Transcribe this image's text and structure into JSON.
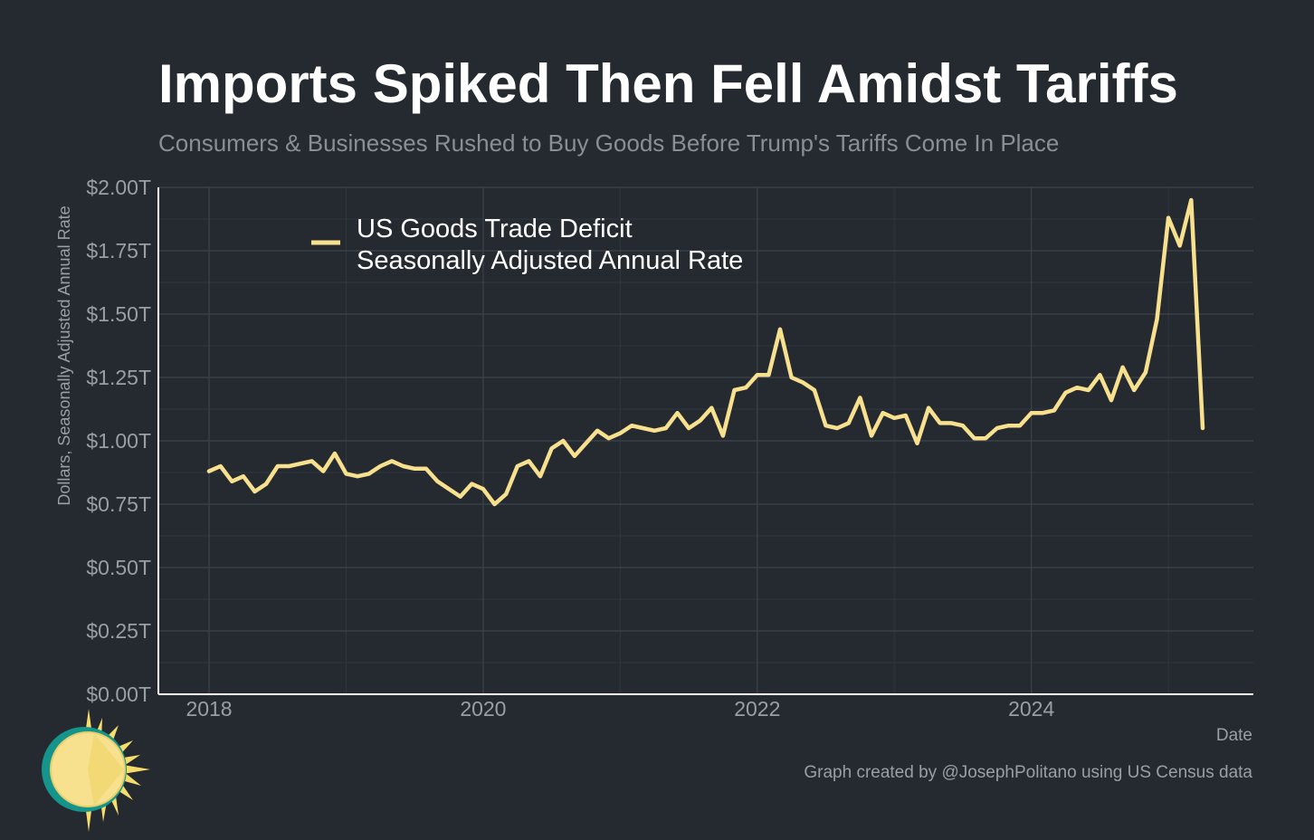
{
  "colors": {
    "background": "#252a31",
    "line": "#f7e08e",
    "axis": "#ffffff",
    "logo_ring": "#14948a",
    "logo_sun": "#f7e08e",
    "logo_rays": "#f6dd6a"
  },
  "logo": {
    "icon": "sun-logo-icon"
  },
  "chart_data": {
    "type": "line",
    "title": "Imports Spiked Then Fell Amidst Tariffs",
    "subtitle": "Consumers & Businesses Rushed to Buy Goods Before Trump's Tariffs Come In Place",
    "xlabel": "Date",
    "ylabel": "Dollars, Seasonally Adjusted Annual Rate",
    "caption": "Graph created by @JosephPolitano using US Census data",
    "legend": {
      "label_line1": "US Goods Trade Deficit",
      "label_line2": "Seasonally Adjusted Annual Rate",
      "position": "top-left"
    },
    "xlim": [
      2017.63,
      2025.62
    ],
    "ylim": [
      0,
      2.0
    ],
    "x_ticks": [
      2018,
      2020,
      2022,
      2024
    ],
    "x_tick_labels": [
      "2018",
      "2020",
      "2022",
      "2024"
    ],
    "y_ticks": [
      0,
      0.25,
      0.5,
      0.75,
      1.0,
      1.25,
      1.5,
      1.75,
      2.0
    ],
    "y_tick_labels": [
      "$0.00T",
      "$0.25T",
      "$0.50T",
      "$0.75T",
      "$1.00T",
      "$1.25T",
      "$1.50T",
      "$1.75T",
      "$2.00T"
    ],
    "grid": true,
    "start": [
      2018,
      1
    ],
    "series": [
      {
        "name": "US Goods Trade Deficit, Seasonally Adjusted Annual Rate",
        "values": [
          0.88,
          0.9,
          0.84,
          0.86,
          0.8,
          0.83,
          0.9,
          0.9,
          0.91,
          0.92,
          0.88,
          0.95,
          0.87,
          0.86,
          0.87,
          0.9,
          0.92,
          0.9,
          0.89,
          0.89,
          0.84,
          0.81,
          0.78,
          0.83,
          0.81,
          0.75,
          0.79,
          0.9,
          0.92,
          0.86,
          0.97,
          1.0,
          0.94,
          0.99,
          1.04,
          1.01,
          1.03,
          1.06,
          1.05,
          1.04,
          1.05,
          1.11,
          1.05,
          1.08,
          1.13,
          1.02,
          1.2,
          1.21,
          1.26,
          1.26,
          1.44,
          1.25,
          1.23,
          1.2,
          1.06,
          1.05,
          1.07,
          1.17,
          1.02,
          1.11,
          1.09,
          1.1,
          0.99,
          1.13,
          1.07,
          1.07,
          1.06,
          1.01,
          1.01,
          1.05,
          1.06,
          1.06,
          1.11,
          1.11,
          1.12,
          1.19,
          1.21,
          1.2,
          1.26,
          1.16,
          1.29,
          1.2,
          1.27,
          1.48,
          1.88,
          1.77,
          1.95,
          1.05
        ]
      }
    ]
  }
}
